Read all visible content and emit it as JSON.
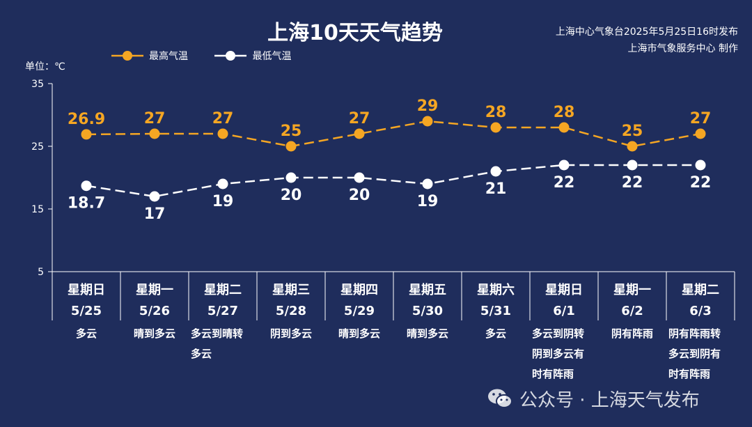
{
  "title": "上海10天天气趋势",
  "issuer": {
    "line1": "上海中心气象台2025年5月25日16时发布",
    "line2": "上海市气象服务中心 制作"
  },
  "unit_label": "单位：℃",
  "colors": {
    "background": "#1f2d5c",
    "high": "#f5a623",
    "low": "#ffffff"
  },
  "watermark": {
    "icon": "wechat-icon",
    "text": "公众号 · 上海天气发布"
  },
  "chart_data": {
    "type": "line",
    "ylim": [
      5,
      35
    ],
    "yticks": [
      "5",
      "15",
      "25",
      "35"
    ],
    "legend_position": "top-left",
    "series": [
      {
        "name": "最高气温",
        "values": [
          26.9,
          27,
          27,
          25,
          27,
          29,
          28,
          28,
          25,
          27
        ],
        "labels": [
          "26.9",
          "27",
          "27",
          "25",
          "27",
          "29",
          "28",
          "28",
          "25",
          "27"
        ]
      },
      {
        "name": "最低气温",
        "values": [
          18.7,
          17,
          19,
          20,
          20,
          19,
          21,
          22,
          22,
          22
        ],
        "labels": [
          "18.7",
          "17",
          "19",
          "20",
          "20",
          "19",
          "21",
          "22",
          "22",
          "22"
        ]
      }
    ],
    "days": [
      {
        "weekday": "星期日",
        "date": "5/25",
        "weather": [
          "多云"
        ]
      },
      {
        "weekday": "星期一",
        "date": "5/26",
        "weather": [
          "晴到多云"
        ]
      },
      {
        "weekday": "星期二",
        "date": "5/27",
        "weather": [
          "多云到晴转",
          "多云"
        ]
      },
      {
        "weekday": "星期三",
        "date": "5/28",
        "weather": [
          "阴到多云"
        ]
      },
      {
        "weekday": "星期四",
        "date": "5/29",
        "weather": [
          "晴到多云"
        ]
      },
      {
        "weekday": "星期五",
        "date": "5/30",
        "weather": [
          "晴到多云"
        ]
      },
      {
        "weekday": "星期六",
        "date": "5/31",
        "weather": [
          "多云"
        ]
      },
      {
        "weekday": "星期日",
        "date": "6/1",
        "weather": [
          "多云到阴转",
          "阴到多云有",
          "时有阵雨"
        ]
      },
      {
        "weekday": "星期一",
        "date": "6/2",
        "weather": [
          "阴有阵雨"
        ]
      },
      {
        "weekday": "星期二",
        "date": "6/3",
        "weather": [
          "阴有阵雨转",
          "多云到阴有",
          "时有阵雨"
        ]
      }
    ]
  }
}
